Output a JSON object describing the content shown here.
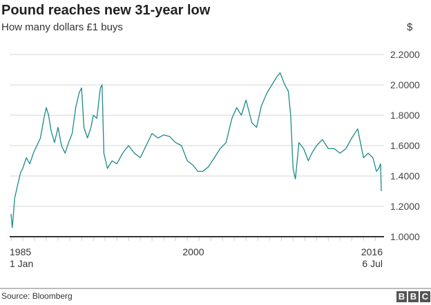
{
  "chart_data": {
    "type": "line",
    "title": "Pound reaches new 31-year low",
    "subtitle": "How many dollars £1 buys",
    "ylabel": "$",
    "source": "Source: Bloomberg",
    "ylim": [
      1.0,
      2.2
    ],
    "yticks": [
      "1.0000",
      "1.2000",
      "1.4000",
      "1.6000",
      "1.8000",
      "2.0000",
      "2.2000"
    ],
    "xlim": [
      1985.0,
      2016.51
    ],
    "xticks": [
      {
        "year": 1985.0,
        "line1": "1985",
        "line2": "1 Jan"
      },
      {
        "year": 2000.4,
        "line1": "2000",
        "line2": ""
      },
      {
        "year": 2016.51,
        "line1": "2016",
        "line2": "6 Jul"
      }
    ],
    "grid": true,
    "color": "#1a8a87",
    "series": [
      {
        "x": [
          1985.0,
          1985.1,
          1985.15,
          1985.3,
          1985.5,
          1985.8,
          1986.0,
          1986.3,
          1986.6,
          1986.9,
          1987.2,
          1987.5,
          1987.8,
          1988.0,
          1988.2,
          1988.4,
          1988.7,
          1989.0,
          1989.3,
          1989.6,
          1989.9,
          1990.2,
          1990.5,
          1990.8,
          1991.0,
          1991.2,
          1991.5,
          1991.8,
          1992.0,
          1992.3,
          1992.6,
          1992.75,
          1992.9,
          1993.2,
          1993.6,
          1994.0,
          1994.5,
          1995.0,
          1995.5,
          1996.0,
          1996.5,
          1997.0,
          1997.5,
          1998.0,
          1998.5,
          1999.0,
          1999.5,
          2000.0,
          2000.5,
          2000.9,
          2001.3,
          2001.8,
          2002.3,
          2002.8,
          2003.3,
          2003.8,
          2004.2,
          2004.6,
          2005.0,
          2005.5,
          2005.9,
          2006.3,
          2006.8,
          2007.2,
          2007.6,
          2007.9,
          2008.3,
          2008.6,
          2008.8,
          2009.0,
          2009.2,
          2009.5,
          2009.9,
          2010.3,
          2010.6,
          2011.0,
          2011.5,
          2012.0,
          2012.5,
          2013.0,
          2013.5,
          2014.0,
          2014.5,
          2015.0,
          2015.4,
          2015.8,
          2016.1,
          2016.3,
          2016.45,
          2016.51
        ],
        "y": [
          1.15,
          1.06,
          1.1,
          1.25,
          1.32,
          1.42,
          1.45,
          1.52,
          1.48,
          1.55,
          1.6,
          1.65,
          1.78,
          1.85,
          1.8,
          1.7,
          1.62,
          1.72,
          1.6,
          1.55,
          1.62,
          1.68,
          1.85,
          1.95,
          1.98,
          1.72,
          1.65,
          1.72,
          1.8,
          1.78,
          1.98,
          2.0,
          1.55,
          1.45,
          1.5,
          1.48,
          1.55,
          1.6,
          1.55,
          1.52,
          1.6,
          1.68,
          1.65,
          1.67,
          1.66,
          1.62,
          1.6,
          1.5,
          1.47,
          1.43,
          1.43,
          1.46,
          1.52,
          1.58,
          1.62,
          1.78,
          1.85,
          1.8,
          1.9,
          1.75,
          1.72,
          1.86,
          1.95,
          2.0,
          2.05,
          2.08,
          2.0,
          1.96,
          1.8,
          1.45,
          1.38,
          1.62,
          1.58,
          1.5,
          1.55,
          1.6,
          1.64,
          1.58,
          1.58,
          1.55,
          1.58,
          1.65,
          1.71,
          1.52,
          1.55,
          1.52,
          1.43,
          1.45,
          1.48,
          1.3
        ]
      }
    ]
  }
}
